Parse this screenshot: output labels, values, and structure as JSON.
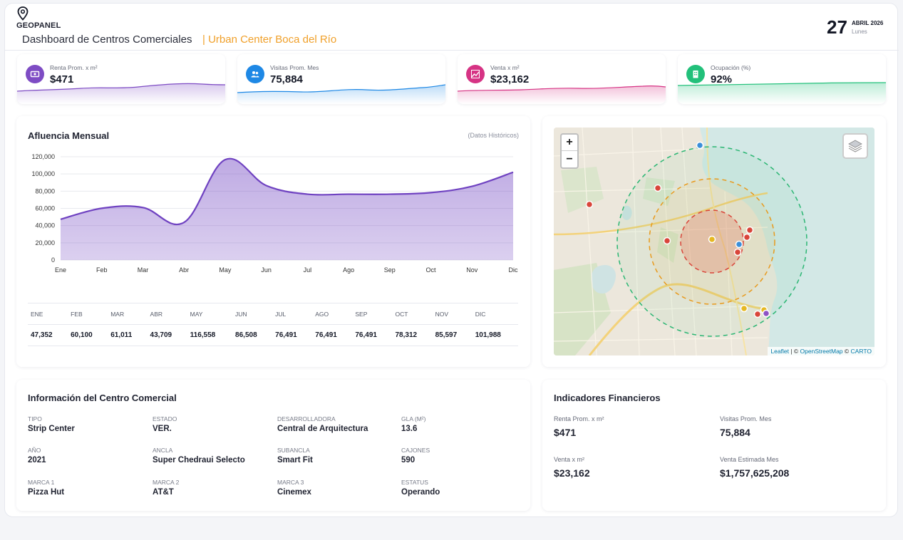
{
  "header": {
    "brand": "GEOPANEL",
    "title": "Dashboard de Centros Comerciales",
    "subtitle": "| Urban Center Boca del Río",
    "date_day": "27",
    "date_month": "ABRIL 2026",
    "date_weekday": "Lunes"
  },
  "kpis": [
    {
      "label": "Renta Prom. x m²",
      "value": "$471",
      "icon": "money-icon",
      "color": "#7e4cc4"
    },
    {
      "label": "Visitas Prom. Mes",
      "value": "75,884",
      "icon": "users-icon",
      "color": "#1e88e5"
    },
    {
      "label": "Venta x m²",
      "value": "$23,162",
      "icon": "trend-icon",
      "color": "#d63384"
    },
    {
      "label": "Ocupación (%)",
      "value": "92%",
      "icon": "building-icon",
      "color": "#22c07a"
    }
  ],
  "afluencia": {
    "title": "Afluencia Mensual",
    "note": "(Datos Históricos)",
    "table_headers": [
      "ENE",
      "FEB",
      "MAR",
      "ABR",
      "MAY",
      "JUN",
      "JUL",
      "AGO",
      "SEP",
      "OCT",
      "NOV",
      "DIC"
    ],
    "table_values": [
      "47,352",
      "60,100",
      "61,011",
      "43,709",
      "116,558",
      "86,508",
      "76,491",
      "76,491",
      "76,491",
      "78,312",
      "85,597",
      "101,988"
    ]
  },
  "chart_data": {
    "type": "area",
    "categories": [
      "Ene",
      "Feb",
      "Mar",
      "Abr",
      "May",
      "Jun",
      "Jul",
      "Ago",
      "Sep",
      "Oct",
      "Nov",
      "Dic"
    ],
    "values": [
      47352,
      60100,
      61011,
      43709,
      116558,
      86508,
      76491,
      76491,
      76491,
      78312,
      85597,
      101988
    ],
    "y_ticks": [
      "0",
      "20,000",
      "40,000",
      "60,000",
      "80,000",
      "100,000",
      "120,000"
    ],
    "ylim": [
      0,
      120000
    ],
    "grid": true,
    "color": "#6f42c1"
  },
  "map": {
    "zoom_in": "+",
    "zoom_out": "−",
    "attribution_leaflet": "Leaflet",
    "attribution_sep1": " | © ",
    "attribution_osm": "OpenStreetMap",
    "attribution_sep2": " © ",
    "attribution_carto": "CARTO"
  },
  "info": {
    "title": "Información del Centro Comercial",
    "fields": [
      {
        "key": "TIPO",
        "value": "Strip Center"
      },
      {
        "key": "ESTADO",
        "value": "VER."
      },
      {
        "key": "DESARROLLADORA",
        "value": "Central de Arquitectura"
      },
      {
        "key": "GLA (M²)",
        "value": "13.6"
      },
      {
        "key": "AÑO",
        "value": "2021"
      },
      {
        "key": "ANCLA",
        "value": "Super Chedraui Selecto"
      },
      {
        "key": "SUBANCLA",
        "value": "Smart Fit"
      },
      {
        "key": "CAJONES",
        "value": "590"
      },
      {
        "key": "MARCA 1",
        "value": "Pizza Hut"
      },
      {
        "key": "MARCA 2",
        "value": "AT&T"
      },
      {
        "key": "MARCA 3",
        "value": "Cinemex"
      },
      {
        "key": "ESTATUS",
        "value": "Operando"
      }
    ]
  },
  "finance": {
    "title": "Indicadores Financieros",
    "fields": [
      {
        "key": "Renta Prom. x m²",
        "value": "$471"
      },
      {
        "key": "Visitas Prom. Mes",
        "value": "75,884"
      },
      {
        "key": "Venta x m²",
        "value": "$23,162"
      },
      {
        "key": "Venta Estimada Mes",
        "value": "$1,757,625,208"
      }
    ]
  }
}
